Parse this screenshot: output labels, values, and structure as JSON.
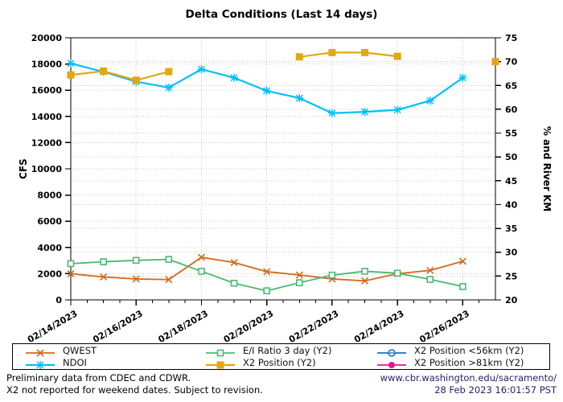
{
  "title": "Delta Conditions (Last 14 days)",
  "chart_data": {
    "type": "line",
    "title": "Delta Conditions (Last 14 days)",
    "x": [
      "02/14/2023",
      "02/15/2023",
      "02/16/2023",
      "02/17/2023",
      "02/18/2023",
      "02/19/2023",
      "02/20/2023",
      "02/21/2023",
      "02/22/2023",
      "02/23/2023",
      "02/24/2023",
      "02/25/2023",
      "02/26/2023",
      "02/27/2023"
    ],
    "x_labels_shown": [
      "02/14/2023",
      "02/16/2023",
      "02/18/2023",
      "02/20/2023",
      "02/22/2023",
      "02/24/2023",
      "02/26/2023"
    ],
    "x_label_every": 2,
    "ylabel": "CFS",
    "y2label": "% and River KM",
    "ylim": [
      0,
      20000
    ],
    "y_tick_step": 2000,
    "y2lim": [
      20,
      75
    ],
    "y2_tick_step": 5,
    "grid": true,
    "legend_position": "bottom",
    "series": [
      {
        "name": "QWEST",
        "axis": "y1",
        "color": "#d2691e",
        "marker": "x",
        "line_width": 1.8,
        "values": [
          2000,
          1750,
          1600,
          1550,
          3250,
          2850,
          2150,
          1900,
          1600,
          1450,
          2000,
          2250,
          2950,
          null
        ]
      },
      {
        "name": "NDOI",
        "axis": "y1",
        "color": "#00bfff",
        "marker": "asterisk",
        "line_width": 2.2,
        "values": [
          18050,
          17400,
          16650,
          16200,
          17600,
          16950,
          15950,
          15400,
          14250,
          14350,
          14500,
          15200,
          16950,
          null
        ]
      },
      {
        "name": "E/I Ratio 3 day (Y2)",
        "axis": "y2",
        "color": "#4db870",
        "marker": "open-square",
        "line_width": 1.8,
        "values": [
          27.6,
          28.0,
          28.3,
          28.5,
          26.0,
          23.5,
          21.9,
          23.6,
          25.2,
          26.0,
          25.6,
          24.3,
          22.8,
          null
        ]
      },
      {
        "name": "X2 Position (Y2)",
        "axis": "y2",
        "color": "#e2a712",
        "marker": "filled-square",
        "line_width": 2.2,
        "values": [
          67.2,
          68.0,
          66.1,
          67.9,
          null,
          null,
          null,
          71.0,
          71.9,
          71.9,
          71.1,
          null,
          null,
          70.0
        ]
      },
      {
        "name": "X2 Position <56km (Y2)",
        "axis": "y2",
        "color": "#1a6fc4",
        "marker": "open-circle",
        "line_width": 1.8,
        "values": [
          null,
          null,
          null,
          null,
          null,
          null,
          null,
          null,
          null,
          null,
          null,
          null,
          null,
          null
        ]
      },
      {
        "name": "X2 Position >81km (Y2)",
        "axis": "y2",
        "color": "#e8148c",
        "marker": "filled-circle",
        "line_width": 1.8,
        "values": [
          null,
          null,
          null,
          null,
          null,
          null,
          null,
          null,
          null,
          null,
          null,
          null,
          null,
          null
        ]
      }
    ]
  },
  "footer": {
    "line1": "Preliminary data from CDEC and CDWR.",
    "line2": "X2 not reported for weekend dates. Subject to revision.",
    "url": "www.cbr.washington.edu/sacramento/",
    "timestamp": "28 Feb 2023 16:01:57 PST",
    "link_color": "#24246a"
  }
}
